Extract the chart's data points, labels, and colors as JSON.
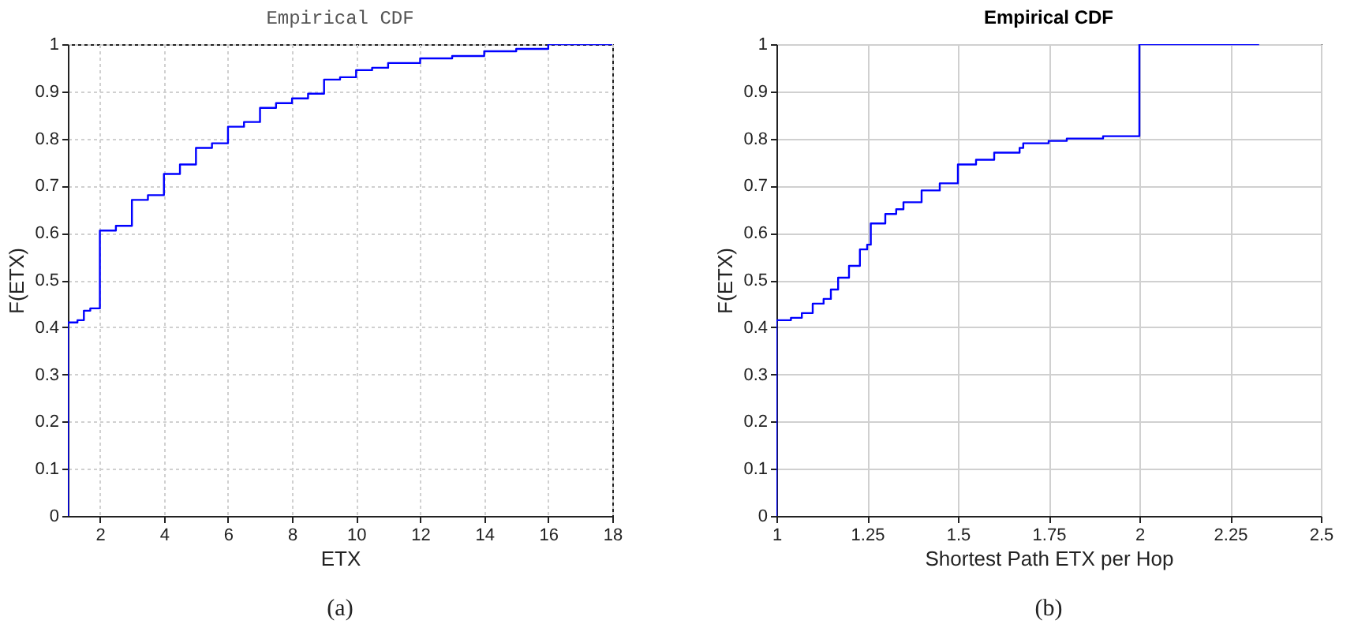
{
  "chart_data": [
    {
      "type": "step",
      "title": "Empirical CDF",
      "xlabel": "ETX",
      "ylabel": "F(ETX)",
      "annotations": [
        "(a)"
      ],
      "grid": true,
      "xlim": [
        1,
        18
      ],
      "xticks": [
        2,
        4,
        6,
        8,
        10,
        12,
        14,
        16,
        18
      ],
      "ylim": [
        0,
        1
      ],
      "yticks": [
        0,
        0.1,
        0.2,
        0.3,
        0.4,
        0.5,
        0.6,
        0.7,
        0.8,
        0.9,
        1
      ],
      "series": [
        {
          "color": "#0000ff",
          "x": [
            1,
            1,
            1.3,
            1.5,
            1.7,
            2,
            2.5,
            3,
            3.5,
            4,
            4.5,
            5,
            5.5,
            6,
            6.5,
            7,
            7.5,
            8,
            8.5,
            9,
            9.5,
            10,
            10.5,
            11,
            12,
            13,
            14,
            15,
            16,
            18
          ],
          "values": [
            0,
            0.41,
            0.415,
            0.435,
            0.44,
            0.605,
            0.615,
            0.67,
            0.68,
            0.725,
            0.745,
            0.78,
            0.79,
            0.825,
            0.835,
            0.865,
            0.875,
            0.885,
            0.895,
            0.925,
            0.93,
            0.945,
            0.95,
            0.96,
            0.97,
            0.975,
            0.985,
            0.99,
            1,
            1
          ]
        }
      ]
    },
    {
      "type": "step",
      "title": "Empirical CDF",
      "xlabel": "Shortest Path ETX per Hop",
      "ylabel": "F(ETX)",
      "annotations": [
        "(b)"
      ],
      "grid": true,
      "xlim": [
        1,
        2.5
      ],
      "xticks": [
        1,
        1.25,
        1.5,
        1.75,
        2,
        2.25,
        2.5
      ],
      "ylim": [
        0,
        1
      ],
      "yticks": [
        0,
        0.1,
        0.2,
        0.3,
        0.4,
        0.5,
        0.6,
        0.7,
        0.8,
        0.9,
        1
      ],
      "series": [
        {
          "color": "#0000ff",
          "x": [
            1,
            1,
            1.04,
            1.07,
            1.1,
            1.13,
            1.15,
            1.17,
            1.2,
            1.23,
            1.25,
            1.26,
            1.3,
            1.33,
            1.35,
            1.4,
            1.45,
            1.5,
            1.55,
            1.6,
            1.67,
            1.68,
            1.75,
            1.8,
            1.9,
            2,
            2.33
          ],
          "values": [
            0,
            0.415,
            0.42,
            0.43,
            0.45,
            0.46,
            0.48,
            0.505,
            0.53,
            0.565,
            0.575,
            0.62,
            0.64,
            0.65,
            0.665,
            0.69,
            0.705,
            0.745,
            0.755,
            0.77,
            0.78,
            0.79,
            0.795,
            0.8,
            0.805,
            1,
            1
          ]
        }
      ]
    }
  ]
}
